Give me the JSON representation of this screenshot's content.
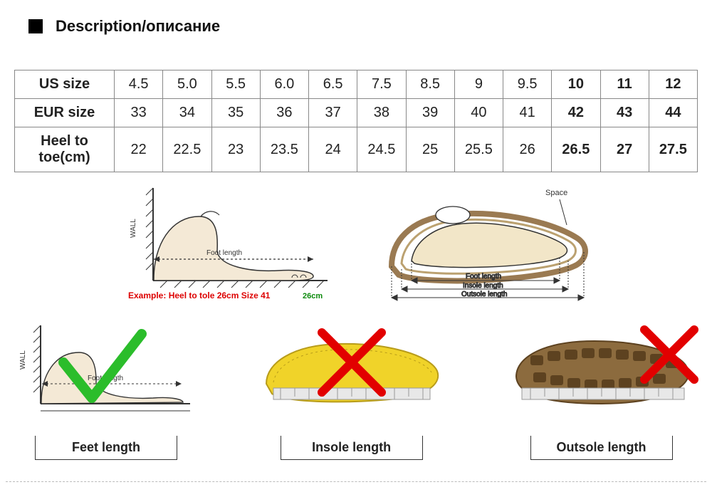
{
  "header": {
    "title": "Description/описание"
  },
  "table": {
    "row_labels": [
      "US size",
      "EUR size",
      "Heel to toe(cm)"
    ],
    "cols": [
      "4.5",
      "5.0",
      "5.5",
      "6.0",
      "6.5",
      "7.5",
      "8.5",
      "9",
      "9.5",
      "10",
      "11",
      "12"
    ],
    "us": [
      "4.5",
      "5.0",
      "5.5",
      "6.0",
      "6.5",
      "7.5",
      "8.5",
      "9",
      "9.5",
      "10",
      "11",
      "12"
    ],
    "eur": [
      "33",
      "34",
      "35",
      "36",
      "37",
      "38",
      "39",
      "40",
      "41",
      "42",
      "43",
      "44"
    ],
    "heel": [
      "22",
      "22.5",
      "23",
      "23.5",
      "24",
      "24.5",
      "25",
      "25.5",
      "26",
      "26.5",
      "27",
      "27.5"
    ],
    "bold_from_index": 9,
    "border_color": "#888",
    "font_size": 20
  },
  "diag1": {
    "wall": "WALL",
    "foot_length": "Foot length",
    "example": "Example: Heel to tole 26cm Size 41",
    "cm_label": "26cm",
    "colors": {
      "line": "#333333",
      "red": "#d40000",
      "green": "#0a8a0a",
      "foot": "#f4e9d6"
    }
  },
  "diag2": {
    "space": "Space",
    "foot_length": "Foot length",
    "insole_length": "Insole length",
    "outsole_length": "Outsole length",
    "colors": {
      "outsole": "#9a7a52",
      "foot": "#f2e6c8",
      "line": "#333333"
    }
  },
  "row2": {
    "feet": {
      "wall": "WALL",
      "foot_length": "Foot length",
      "caption": "Feet length",
      "check_color": "#2bbd2b"
    },
    "insole": {
      "caption": "Insole length",
      "colors": {
        "insole": "#f0d329",
        "tape": "#e8e8e8",
        "line": "#333"
      },
      "cross_color": "#e20000"
    },
    "outsole": {
      "caption": "Outsole length",
      "colors": {
        "sole": "#8c6b3e",
        "lug": "#5d4220",
        "tape": "#e8e8e8"
      },
      "cross_color": "#e20000"
    }
  },
  "style": {
    "bg": "#ffffff",
    "text": "#111111"
  }
}
